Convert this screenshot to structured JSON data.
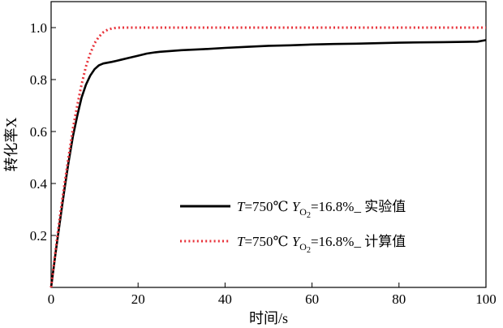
{
  "chart_data": {
    "type": "line",
    "title": "",
    "xlabel": "时间/s",
    "ylabel": "转化率X",
    "xlim": [
      0,
      100
    ],
    "ylim": [
      0,
      1.1
    ],
    "xticks": [
      "0",
      "20",
      "40",
      "60",
      "80",
      "100"
    ],
    "yticks": [
      "0.2",
      "0.4",
      "0.6",
      "0.8",
      "1.0"
    ],
    "legend_position": "bottom-right",
    "series": [
      {
        "name": "T=750℃ YO2=16.8%_ 实验值",
        "legend": {
          "t": "T",
          "temp": "=750℃ ",
          "y": "Y",
          "sub": "O",
          "sub2": "2",
          "rest": "=16.8%_ 实验值"
        },
        "color": "#000000",
        "style": "solid",
        "x": [
          0,
          1,
          2,
          3,
          4,
          5,
          6,
          7,
          8,
          9,
          10,
          11,
          12,
          13,
          14,
          15,
          16,
          18,
          20,
          22,
          24,
          25,
          30,
          35,
          40,
          45,
          50,
          55,
          60,
          65,
          70,
          75,
          80,
          85,
          90,
          95,
          98,
          100
        ],
        "y": [
          0,
          0.13,
          0.25,
          0.37,
          0.48,
          0.58,
          0.66,
          0.73,
          0.78,
          0.815,
          0.84,
          0.855,
          0.862,
          0.865,
          0.868,
          0.872,
          0.876,
          0.884,
          0.892,
          0.9,
          0.905,
          0.907,
          0.913,
          0.917,
          0.922,
          0.926,
          0.93,
          0.932,
          0.935,
          0.937,
          0.938,
          0.94,
          0.942,
          0.943,
          0.944,
          0.945,
          0.946,
          0.952
        ]
      },
      {
        "name": "T=750℃ YO2=16.8%_ 计算值",
        "legend": {
          "t": "T",
          "temp": "=750℃ ",
          "y": "Y",
          "sub": "O",
          "sub2": "2",
          "rest": "=16.8%_ 计算值"
        },
        "color": "#e8323a",
        "style": "dotted",
        "x": [
          0,
          1,
          2,
          3,
          4,
          5,
          6,
          7,
          8,
          9,
          10,
          11,
          12,
          13,
          14,
          15,
          16,
          18,
          20,
          30,
          40,
          50,
          60,
          70,
          80,
          90,
          100
        ],
        "y": [
          0,
          0.14,
          0.27,
          0.39,
          0.5,
          0.61,
          0.7,
          0.78,
          0.85,
          0.9,
          0.94,
          0.965,
          0.982,
          0.992,
          0.997,
          0.999,
          1.0,
          1.0,
          1.0,
          1.0,
          1.0,
          1.0,
          1.0,
          1.0,
          1.0,
          1.0,
          1.0
        ]
      }
    ]
  }
}
